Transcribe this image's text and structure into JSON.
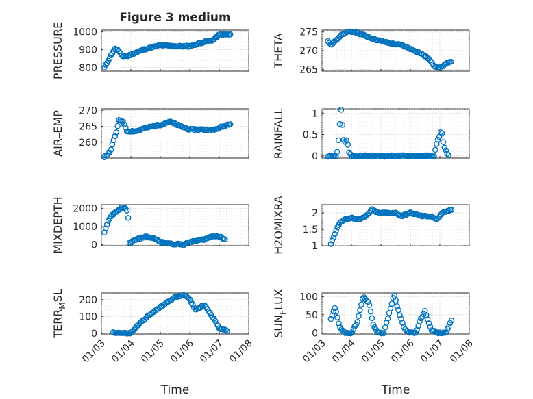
{
  "figure": {
    "title": "Figure 3 medium",
    "marker_color": "#0072bd"
  },
  "chart_data": [
    {
      "type": "scatter",
      "name": "pressure",
      "title": "Figure 3 medium",
      "ylabel": "PRESSURE",
      "ylim": [
        780,
        1010
      ],
      "yticks": [
        800,
        900,
        1000
      ],
      "ytick_labels": [
        "800",
        "900",
        "1000"
      ],
      "xlim": [
        0,
        5
      ],
      "xticks": [
        0,
        1,
        2,
        3,
        4,
        5
      ],
      "xtick_labels": [
        "01/03",
        "01/04",
        "01/05",
        "01/06",
        "01/07",
        "01/08"
      ],
      "show_xtick_labels": false,
      "xlabel": "",
      "series": [
        {
          "name": "PRESSURE",
          "knots": [
            [
              0.1,
              800
            ],
            [
              0.3,
              860
            ],
            [
              0.45,
              905
            ],
            [
              0.55,
              900
            ],
            [
              0.7,
              865
            ],
            [
              0.9,
              865
            ],
            [
              1.1,
              880
            ],
            [
              1.5,
              905
            ],
            [
              2.0,
              925
            ],
            [
              2.6,
              920
            ],
            [
              3.0,
              920
            ],
            [
              3.4,
              940
            ],
            [
              3.8,
              955
            ],
            [
              4.0,
              985
            ],
            [
              4.4,
              985
            ]
          ]
        }
      ]
    },
    {
      "type": "scatter",
      "name": "theta",
      "title": "",
      "ylabel": "THETA",
      "ylim": [
        264.5,
        275.5
      ],
      "yticks": [
        265,
        270,
        275
      ],
      "ytick_labels": [
        "265",
        "270",
        "275"
      ],
      "xlim": [
        0,
        5
      ],
      "xticks": [
        0,
        1,
        2,
        3,
        4,
        5
      ],
      "xtick_labels": [
        "01/03",
        "01/04",
        "01/05",
        "01/06",
        "01/07",
        "01/08"
      ],
      "show_xtick_labels": false,
      "xlabel": "",
      "series": [
        {
          "name": "THETA",
          "knots": [
            [
              0.2,
              272.5
            ],
            [
              0.3,
              271.5
            ],
            [
              0.5,
              273
            ],
            [
              0.7,
              274.5
            ],
            [
              0.9,
              275
            ],
            [
              1.1,
              275
            ],
            [
              1.3,
              274.5
            ],
            [
              1.8,
              273
            ],
            [
              2.3,
              272
            ],
            [
              2.7,
              271.5
            ],
            [
              3.0,
              270.5
            ],
            [
              3.3,
              269.5
            ],
            [
              3.6,
              268
            ],
            [
              3.8,
              266
            ],
            [
              4.0,
              265.3
            ],
            [
              4.2,
              266.5
            ],
            [
              4.4,
              267
            ]
          ]
        }
      ]
    },
    {
      "type": "scatter",
      "name": "air_temp",
      "title": "",
      "ylabel": "AIR_TEMP",
      "ylim": [
        255,
        270.5
      ],
      "yticks": [
        260,
        265,
        270
      ],
      "ytick_labels": [
        "260",
        "265",
        "270"
      ],
      "xlim": [
        0,
        5
      ],
      "xticks": [
        0,
        1,
        2,
        3,
        4,
        5
      ],
      "xtick_labels": [
        "01/03",
        "01/04",
        "01/05",
        "01/06",
        "01/07",
        "01/08"
      ],
      "show_xtick_labels": false,
      "xlabel": "",
      "series": [
        {
          "name": "AIR_TEMP",
          "knots": [
            [
              0.1,
              255.5
            ],
            [
              0.3,
              257
            ],
            [
              0.5,
              263
            ],
            [
              0.6,
              267
            ],
            [
              0.75,
              266.5
            ],
            [
              0.85,
              263.5
            ],
            [
              1.2,
              263.5
            ],
            [
              1.5,
              264.5
            ],
            [
              2.0,
              265.5
            ],
            [
              2.3,
              266.5
            ],
            [
              2.7,
              265
            ],
            [
              3.0,
              264
            ],
            [
              3.5,
              264
            ],
            [
              3.8,
              263.8
            ],
            [
              4.0,
              264.5
            ],
            [
              4.4,
              266
            ]
          ]
        }
      ]
    },
    {
      "type": "scatter",
      "name": "rainfall",
      "title": "",
      "ylabel": "RAINFALL",
      "ylim": [
        -0.05,
        1.1
      ],
      "yticks": [
        0,
        0.5,
        1
      ],
      "ytick_labels": [
        "0",
        "0.5",
        "1"
      ],
      "xlim": [
        0,
        5
      ],
      "xticks": [
        0,
        1,
        2,
        3,
        4,
        5
      ],
      "xtick_labels": [
        "01/03",
        "01/04",
        "01/05",
        "01/06",
        "01/07",
        "01/08"
      ],
      "show_xtick_labels": false,
      "xlabel": "",
      "series": [
        {
          "name": "RAINFALL",
          "knots": [
            [
              0.2,
              0
            ],
            [
              0.5,
              0
            ],
            [
              0.55,
              0.3
            ],
            [
              0.6,
              0.7
            ],
            [
              0.65,
              1.08
            ],
            [
              0.75,
              0.3
            ],
            [
              0.85,
              0.4
            ],
            [
              0.9,
              0.1
            ],
            [
              1.0,
              0
            ],
            [
              3.6,
              0
            ],
            [
              3.8,
              0
            ],
            [
              3.9,
              0.3
            ],
            [
              4.05,
              0.6
            ],
            [
              4.15,
              0.2
            ],
            [
              4.3,
              0
            ]
          ]
        }
      ]
    },
    {
      "type": "scatter",
      "name": "mixdepth",
      "title": "",
      "ylabel": "MIXDEPTH",
      "ylim": [
        -50,
        2200
      ],
      "yticks": [
        0,
        1000,
        2000
      ],
      "ytick_labels": [
        "0",
        "1000",
        "2000"
      ],
      "xlim": [
        0,
        5
      ],
      "xticks": [
        0,
        1,
        2,
        3,
        4,
        5
      ],
      "xtick_labels": [
        "01/03",
        "01/04",
        "01/05",
        "01/06",
        "01/07",
        "01/08"
      ],
      "show_xtick_labels": false,
      "xlabel": "",
      "series": [
        {
          "name": "MIXDEPTH",
          "knots": [
            [
              0.1,
              650
            ],
            [
              0.2,
              1200
            ],
            [
              0.35,
              1600
            ],
            [
              0.5,
              1800
            ],
            [
              0.7,
              2050
            ],
            [
              0.8,
              2000
            ],
            [
              0.9,
              1800
            ],
            [
              0.95,
              100
            ],
            [
              1.2,
              300
            ],
            [
              1.5,
              450
            ],
            [
              1.8,
              350
            ],
            [
              2.0,
              150
            ],
            [
              2.4,
              50
            ],
            [
              2.8,
              20
            ],
            [
              3.0,
              150
            ],
            [
              3.5,
              300
            ],
            [
              3.8,
              500
            ],
            [
              4.0,
              450
            ],
            [
              4.2,
              300
            ]
          ]
        }
      ]
    },
    {
      "type": "scatter",
      "name": "h2omixra",
      "title": "",
      "ylabel": "H2OMIXRA",
      "ylim": [
        1,
        2.25
      ],
      "yticks": [
        1,
        1.5,
        2
      ],
      "ytick_labels": [
        "1",
        "1.5",
        "2"
      ],
      "xlim": [
        0,
        5
      ],
      "xticks": [
        0,
        1,
        2,
        3,
        4,
        5
      ],
      "xtick_labels": [
        "01/03",
        "01/04",
        "01/05",
        "01/06",
        "01/07",
        "01/08"
      ],
      "show_xtick_labels": false,
      "xlabel": "",
      "series": [
        {
          "name": "H2OMIXRA",
          "knots": [
            [
              0.3,
              1.05
            ],
            [
              0.45,
              1.4
            ],
            [
              0.6,
              1.7
            ],
            [
              0.8,
              1.8
            ],
            [
              1.0,
              1.85
            ],
            [
              1.3,
              1.8
            ],
            [
              1.5,
              1.9
            ],
            [
              1.7,
              2.1
            ],
            [
              1.9,
              2.0
            ],
            [
              2.1,
              2.0
            ],
            [
              2.5,
              2.0
            ],
            [
              2.7,
              1.9
            ],
            [
              3.0,
              2.0
            ],
            [
              3.4,
              1.9
            ],
            [
              3.7,
              1.9
            ],
            [
              3.9,
              1.8
            ],
            [
              4.1,
              2.0
            ],
            [
              4.4,
              2.1
            ]
          ]
        }
      ]
    },
    {
      "type": "scatter",
      "name": "terr_msl",
      "title": "",
      "ylabel": "TERR_MSL",
      "ylim": [
        -5,
        240
      ],
      "yticks": [
        0,
        100,
        200
      ],
      "ytick_labels": [
        "0",
        "100",
        "200"
      ],
      "xlim": [
        0,
        5
      ],
      "xticks": [
        0,
        1,
        2,
        3,
        4,
        5
      ],
      "xtick_labels": [
        "01/03",
        "01/04",
        "01/05",
        "01/06",
        "01/07",
        "01/08"
      ],
      "show_xtick_labels": true,
      "xlabel": "Time",
      "series": [
        {
          "name": "TERR_MSL",
          "knots": [
            [
              0.4,
              5
            ],
            [
              0.8,
              0
            ],
            [
              1.0,
              0
            ],
            [
              1.2,
              40
            ],
            [
              1.5,
              90
            ],
            [
              1.8,
              130
            ],
            [
              2.2,
              180
            ],
            [
              2.5,
              215
            ],
            [
              2.8,
              230
            ],
            [
              3.0,
              200
            ],
            [
              3.2,
              140
            ],
            [
              3.5,
              170
            ],
            [
              3.8,
              90
            ],
            [
              4.0,
              30
            ],
            [
              4.3,
              15
            ]
          ]
        }
      ]
    },
    {
      "type": "scatter",
      "name": "sun_flux",
      "title": "",
      "ylabel": "SUN_FLUX",
      "ylim": [
        -3,
        110
      ],
      "yticks": [
        0,
        50,
        100
      ],
      "ytick_labels": [
        "0",
        "50",
        "100"
      ],
      "xlim": [
        0,
        5
      ],
      "xticks": [
        0,
        1,
        2,
        3,
        4,
        5
      ],
      "xtick_labels": [
        "01/03",
        "01/04",
        "01/05",
        "01/06",
        "01/07",
        "01/08"
      ],
      "show_xtick_labels": true,
      "xlabel": "Time",
      "series": [
        {
          "name": "SUN_FLUX",
          "knots": [
            [
              0.3,
              40
            ],
            [
              0.45,
              70
            ],
            [
              0.6,
              15
            ],
            [
              0.8,
              0
            ],
            [
              1.0,
              0
            ],
            [
              1.2,
              30
            ],
            [
              1.4,
              100
            ],
            [
              1.6,
              80
            ],
            [
              1.75,
              20
            ],
            [
              1.9,
              0
            ],
            [
              2.1,
              0
            ],
            [
              2.3,
              60
            ],
            [
              2.45,
              105
            ],
            [
              2.6,
              60
            ],
            [
              2.8,
              10
            ],
            [
              3.0,
              0
            ],
            [
              3.2,
              0
            ],
            [
              3.3,
              30
            ],
            [
              3.5,
              60
            ],
            [
              3.7,
              10
            ],
            [
              3.9,
              0
            ],
            [
              4.2,
              0
            ],
            [
              4.4,
              35
            ]
          ]
        }
      ]
    }
  ]
}
